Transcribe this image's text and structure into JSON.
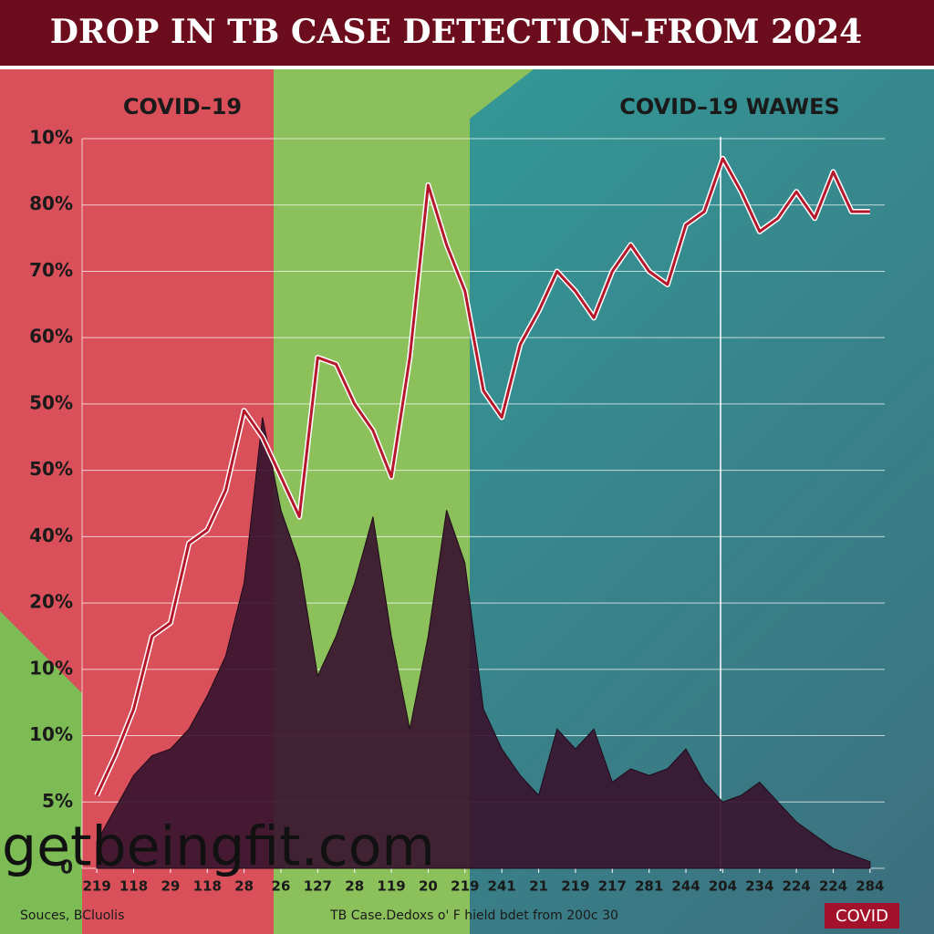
{
  "chart_data": {
    "type": "line",
    "title": "DROP IN TB CASE DETECTION-FROM 2024",
    "annotations": [
      "COVID–19",
      "COVID–19 WAWES"
    ],
    "source": "Souces, BCluolis",
    "footnote": "TB Case.Dedoxs o' F hield bdet from 200c 30",
    "badge": "COVID",
    "watermark": "getbeingfit.com",
    "xlim": [
      -0.4,
      21.4
    ],
    "xticks": [
      {
        "value": 0,
        "label": "219"
      },
      {
        "value": 1,
        "label": "118"
      },
      {
        "value": 2,
        "label": "29"
      },
      {
        "value": 3,
        "label": "118"
      },
      {
        "value": 4,
        "label": "28"
      },
      {
        "value": 5,
        "label": "26"
      },
      {
        "value": 6,
        "label": "127"
      },
      {
        "value": 7,
        "label": "28"
      },
      {
        "value": 8,
        "label": "119"
      },
      {
        "value": 9,
        "label": "20"
      },
      {
        "value": 10,
        "label": "219"
      },
      {
        "value": 11,
        "label": "241"
      },
      {
        "value": 12,
        "label": "21"
      },
      {
        "value": 13,
        "label": "219"
      },
      {
        "value": 14,
        "label": "217"
      },
      {
        "value": 15,
        "label": "281"
      },
      {
        "value": 16,
        "label": "244"
      },
      {
        "value": 17,
        "label": "204"
      },
      {
        "value": 18,
        "label": "234"
      },
      {
        "value": 19,
        "label": "224"
      },
      {
        "value": 20,
        "label": "224"
      },
      {
        "value": 21,
        "label": "284"
      }
    ],
    "ylim": [
      0,
      110
    ],
    "yticks": [
      0,
      {
        "value": 10,
        "label": "5%"
      },
      {
        "value": 20,
        "label": "10%"
      },
      {
        "value": 30,
        "label": "10%"
      },
      {
        "value": 40,
        "label": "20%"
      },
      {
        "value": 50,
        "label": "40%"
      },
      {
        "value": 60,
        "label": "50%"
      },
      {
        "value": 70,
        "label": "50%"
      },
      {
        "value": 80,
        "label": "60%"
      },
      {
        "value": 90,
        "label": "70%"
      },
      {
        "value": 100,
        "label": "80%"
      },
      {
        "value": 110,
        "label": "10%"
      }
    ],
    "grid": true,
    "x": [
      0,
      0.5,
      1,
      1.5,
      2,
      2.5,
      3,
      3.5,
      4,
      4.5,
      5,
      5.5,
      6,
      6.5,
      7,
      7.5,
      8,
      8.5,
      9,
      9.5,
      10,
      10.5,
      11,
      11.5,
      12,
      12.5,
      13,
      13.5,
      14,
      14.5,
      15,
      15.5,
      16,
      16.5,
      17,
      17.5,
      18,
      18.5,
      19,
      19.5,
      20,
      20.5,
      21
    ],
    "series": [
      {
        "color": "#3a1530",
        "fill": true,
        "values": [
          4,
          9,
          14,
          17,
          18,
          21,
          26,
          32,
          43,
          68,
          54,
          46,
          29,
          35,
          43,
          53,
          35,
          21,
          35,
          54,
          46,
          24,
          18,
          14,
          11,
          21,
          18,
          21,
          13,
          15,
          14,
          15,
          18,
          13,
          10,
          11,
          13,
          10,
          7,
          5,
          3,
          2,
          1
        ]
      },
      {
        "color": "#b5172b",
        "fill": false,
        "values": [
          11,
          17,
          24,
          35,
          37,
          49,
          51,
          57,
          69,
          65,
          59,
          53,
          77,
          76,
          70,
          66,
          59,
          77,
          103,
          94,
          87,
          72,
          68,
          79,
          84,
          90,
          87,
          83,
          90,
          94,
          90,
          88,
          97,
          99,
          107,
          102,
          96,
          98,
          102,
          98,
          105,
          99,
          99
        ]
      }
    ]
  }
}
